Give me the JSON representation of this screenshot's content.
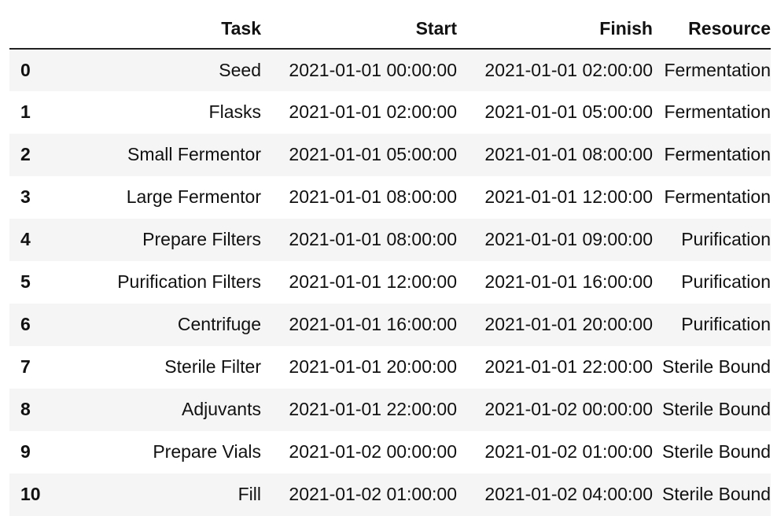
{
  "table": {
    "index_header": "",
    "columns": {
      "task": "Task",
      "start": "Start",
      "finish": "Finish",
      "resource": "Resource"
    },
    "rows": [
      {
        "index": "0",
        "task": "Seed",
        "start": "2021-01-01 00:00:00",
        "finish": "2021-01-01 02:00:00",
        "resource": "Fermentation"
      },
      {
        "index": "1",
        "task": "Flasks",
        "start": "2021-01-01 02:00:00",
        "finish": "2021-01-01 05:00:00",
        "resource": "Fermentation"
      },
      {
        "index": "2",
        "task": "Small Fermentor",
        "start": "2021-01-01 05:00:00",
        "finish": "2021-01-01 08:00:00",
        "resource": "Fermentation"
      },
      {
        "index": "3",
        "task": "Large Fermentor",
        "start": "2021-01-01 08:00:00",
        "finish": "2021-01-01 12:00:00",
        "resource": "Fermentation"
      },
      {
        "index": "4",
        "task": "Prepare Filters",
        "start": "2021-01-01 08:00:00",
        "finish": "2021-01-01 09:00:00",
        "resource": "Purification"
      },
      {
        "index": "5",
        "task": "Purification Filters",
        "start": "2021-01-01 12:00:00",
        "finish": "2021-01-01 16:00:00",
        "resource": "Purification"
      },
      {
        "index": "6",
        "task": "Centrifuge",
        "start": "2021-01-01 16:00:00",
        "finish": "2021-01-01 20:00:00",
        "resource": "Purification"
      },
      {
        "index": "7",
        "task": "Sterile Filter",
        "start": "2021-01-01 20:00:00",
        "finish": "2021-01-01 22:00:00",
        "resource": "Sterile Boundary"
      },
      {
        "index": "8",
        "task": "Adjuvants",
        "start": "2021-01-01 22:00:00",
        "finish": "2021-01-02 00:00:00",
        "resource": "Sterile Boundary"
      },
      {
        "index": "9",
        "task": "Prepare Vials",
        "start": "2021-01-02 00:00:00",
        "finish": "2021-01-02 01:00:00",
        "resource": "Sterile Boundary"
      },
      {
        "index": "10",
        "task": "Fill",
        "start": "2021-01-02 01:00:00",
        "finish": "2021-01-02 04:00:00",
        "resource": "Sterile Boundary"
      }
    ]
  },
  "colors": {
    "striped_row": "#f5f5f5",
    "plain_row": "#ffffff",
    "header_rule": "#222222",
    "text": "#111111"
  }
}
